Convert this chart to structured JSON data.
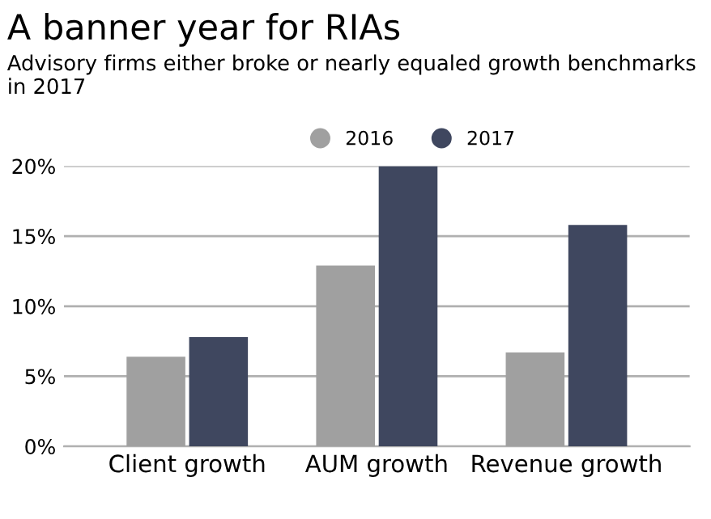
{
  "chart_data": {
    "type": "bar",
    "title": "A banner year for RIAs",
    "subtitle": "Advisory firms either broke or nearly equaled growth benchmarks in 2017",
    "categories": [
      "Client growth",
      "AUM growth",
      "Revenue growth"
    ],
    "series": [
      {
        "name": "2016",
        "color": "#a0a0a0",
        "values": [
          6.4,
          12.9,
          6.7
        ]
      },
      {
        "name": "2017",
        "color": "#3f475f",
        "values": [
          7.8,
          20.0,
          15.8
        ]
      }
    ],
    "ylim": [
      0,
      20
    ],
    "yticks": [
      {
        "value": 0,
        "label": "0%"
      },
      {
        "value": 5,
        "label": "5%"
      },
      {
        "value": 10,
        "label": "10%"
      },
      {
        "value": 15,
        "label": "15%"
      },
      {
        "value": 20,
        "label": "20%"
      }
    ],
    "grid": "y",
    "legend": "top"
  }
}
